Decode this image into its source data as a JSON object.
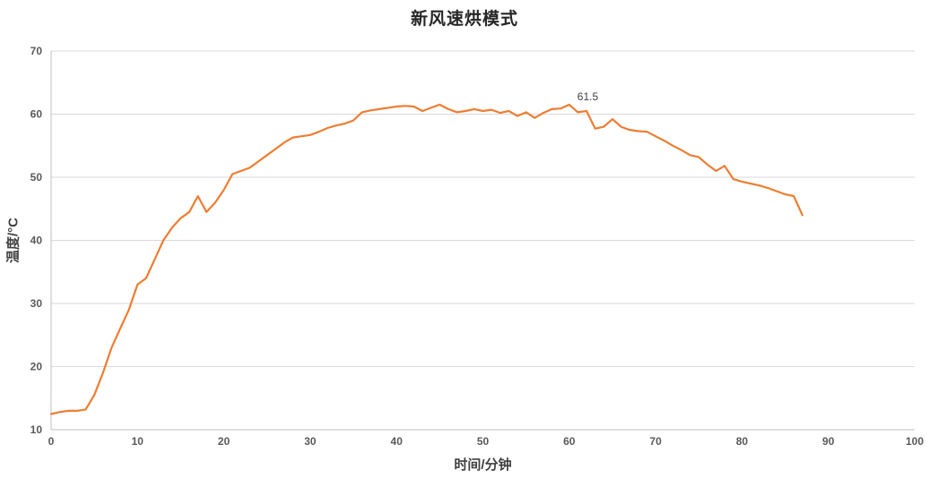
{
  "chart": {
    "title": "新风速烘模式",
    "xlabel": "时间/分钟",
    "ylabel": "温度/°C",
    "line_color": "#ED7D31",
    "grid_color": "#D9D9D9",
    "axis_color": "#BFBFBF",
    "tick_color": "#595959"
  },
  "chart_data": {
    "type": "line",
    "title": "新风速烘模式",
    "xlabel": "时间/分钟",
    "ylabel": "温度/°C",
    "xlim": [
      0,
      100
    ],
    "ylim": [
      10,
      70
    ],
    "x_ticks": [
      0,
      10,
      20,
      30,
      40,
      50,
      60,
      70,
      80,
      90,
      100
    ],
    "y_ticks": [
      10,
      20,
      30,
      40,
      50,
      60,
      70
    ],
    "grid": "horizontal",
    "legend_position": "none",
    "series": [
      {
        "name": "温度",
        "x": [
          0,
          1,
          2,
          3,
          4,
          5,
          6,
          7,
          8,
          9,
          10,
          11,
          12,
          13,
          14,
          15,
          16,
          17,
          18,
          19,
          20,
          21,
          22,
          23,
          24,
          25,
          26,
          27,
          28,
          29,
          30,
          31,
          32,
          33,
          34,
          35,
          36,
          37,
          38,
          39,
          40,
          41,
          42,
          43,
          44,
          45,
          46,
          47,
          48,
          49,
          50,
          51,
          52,
          53,
          54,
          55,
          56,
          57,
          58,
          59,
          60,
          61,
          62,
          63,
          64,
          65,
          66,
          67,
          68,
          69,
          70,
          71,
          72,
          73,
          74,
          75,
          76,
          77,
          78,
          79,
          80,
          81,
          82,
          83,
          84,
          85,
          86,
          87
        ],
        "values": [
          12.5,
          12.8,
          13.0,
          13.0,
          13.2,
          15.5,
          19.0,
          23.0,
          26.0,
          29.0,
          33.0,
          34.0,
          37.0,
          40.0,
          42.0,
          43.5,
          44.5,
          47.0,
          44.5,
          46.0,
          48.0,
          50.5,
          51.0,
          51.5,
          52.5,
          53.5,
          54.5,
          55.5,
          56.3,
          56.5,
          56.7,
          57.2,
          57.8,
          58.2,
          58.5,
          59.0,
          60.3,
          60.6,
          60.8,
          61.0,
          61.2,
          61.3,
          61.2,
          60.5,
          61.0,
          61.5,
          60.8,
          60.3,
          60.5,
          60.8,
          60.5,
          60.7,
          60.2,
          60.5,
          59.7,
          60.3,
          59.4,
          60.2,
          60.8,
          60.9,
          61.5,
          60.3,
          60.5,
          57.7,
          58.0,
          59.2,
          58.0,
          57.5,
          57.3,
          57.2,
          56.5,
          55.8,
          55.0,
          54.3,
          53.5,
          53.2,
          52.0,
          51.0,
          51.8,
          49.7,
          49.3,
          49.0,
          48.7,
          48.3,
          47.8,
          47.3,
          47.0,
          44.0
        ]
      }
    ],
    "annotations": [
      {
        "x": 60,
        "y": 61.5,
        "text": "61.5"
      }
    ]
  }
}
